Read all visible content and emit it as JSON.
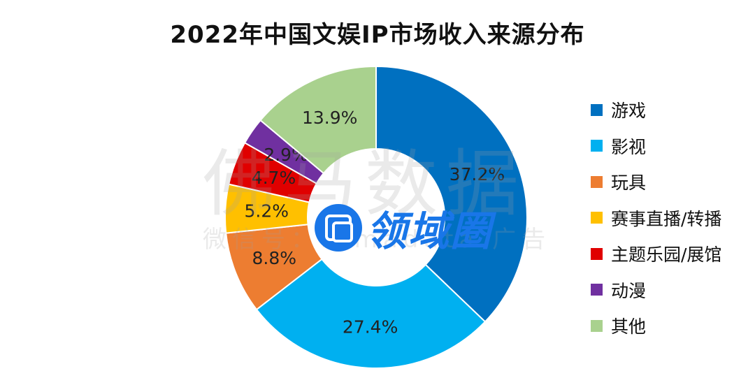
{
  "chart_data": {
    "type": "pie",
    "donut": true,
    "title": "2022年中国文娱IP市场收入来源分布",
    "slices": [
      {
        "label": "游戏",
        "value": 37.2,
        "display": "37.2%",
        "color": "#0070C0"
      },
      {
        "label": "影视",
        "value": 27.4,
        "display": "27.4%",
        "color": "#00B0F0"
      },
      {
        "label": "玩具",
        "value": 8.8,
        "display": "8.8%",
        "color": "#ED7D31"
      },
      {
        "label": "赛事直播/转播",
        "value": 5.2,
        "display": "5.2%",
        "color": "#FFC000"
      },
      {
        "label": "主题乐园/展馆",
        "value": 4.7,
        "display": "4.7%",
        "color": "#E00000"
      },
      {
        "label": "动漫",
        "value": 2.9,
        "display": "2.9%",
        "color": "#7030A0"
      },
      {
        "label": "其他",
        "value": 13.9,
        "display": "13.9%",
        "color": "#A9D18E"
      }
    ],
    "legend_position": "right"
  },
  "watermark": {
    "line1": "佛马数据",
    "line2": "微信号：fomadata 广告"
  },
  "logo": {
    "text": "领域圈",
    "icon": "overlapping-squares-icon",
    "color": "#1976E8"
  }
}
